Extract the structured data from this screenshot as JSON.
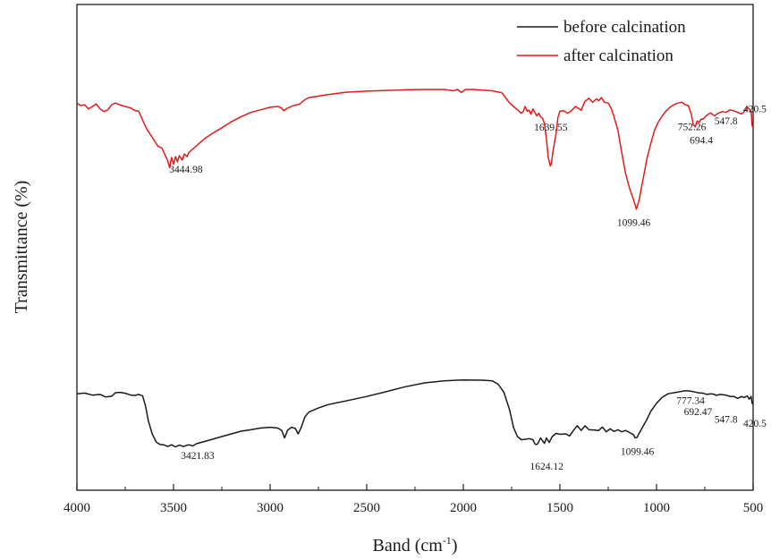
{
  "chart_data": {
    "type": "line",
    "xlabel": "Band (cm",
    "xlabel_sup": "-1",
    "xlabel_end": ")",
    "ylabel": "Transmittance (%)",
    "xlim": [
      4000,
      500
    ],
    "x_reversed": true,
    "ylim": [
      0,
      100
    ],
    "yticks_shown": false,
    "xticks": [
      4000,
      3500,
      3000,
      2500,
      2000,
      1500,
      1000,
      500
    ],
    "grid": false,
    "legend_position": "top-right",
    "series": [
      {
        "name": "before calcination",
        "color": "#1a1a1a",
        "points": [
          [
            4000,
            42
          ],
          [
            3960,
            42.5
          ],
          [
            3920,
            41
          ],
          [
            3880,
            41.5
          ],
          [
            3850,
            39.6
          ],
          [
            3820,
            40.2
          ],
          [
            3800,
            42.8
          ],
          [
            3775,
            43
          ],
          [
            3750,
            42.4
          ],
          [
            3720,
            41
          ],
          [
            3700,
            40.8
          ],
          [
            3680,
            41.5
          ],
          [
            3660,
            40.5
          ],
          [
            3645,
            33
          ],
          [
            3630,
            22
          ],
          [
            3610,
            12.5
          ],
          [
            3590,
            6.5
          ],
          [
            3570,
            4.7
          ],
          [
            3550,
            4.4
          ],
          [
            3530,
            3.2
          ],
          [
            3510,
            4.5
          ],
          [
            3490,
            2.9
          ],
          [
            3470,
            4.2
          ],
          [
            3450,
            3.2
          ],
          [
            3421,
            4.5
          ],
          [
            3400,
            3.6
          ],
          [
            3380,
            5.3
          ],
          [
            3350,
            6.5
          ],
          [
            3300,
            8.5
          ],
          [
            3250,
            10.5
          ],
          [
            3200,
            12.5
          ],
          [
            3150,
            14.5
          ],
          [
            3100,
            15.5
          ],
          [
            3050,
            16.8
          ],
          [
            3000,
            17.4
          ],
          [
            2960,
            16.8
          ],
          [
            2940,
            15
          ],
          [
            2925,
            9.5
          ],
          [
            2910,
            15
          ],
          [
            2890,
            17.4
          ],
          [
            2870,
            16.5
          ],
          [
            2855,
            12.5
          ],
          [
            2840,
            17
          ],
          [
            2820,
            25
          ],
          [
            2800,
            28.5
          ],
          [
            2750,
            31.5
          ],
          [
            2700,
            34
          ],
          [
            2600,
            37
          ],
          [
            2500,
            40
          ],
          [
            2400,
            43.5
          ],
          [
            2300,
            47.2
          ],
          [
            2200,
            50
          ],
          [
            2100,
            51.5
          ],
          [
            2000,
            52.2
          ],
          [
            1900,
            52
          ],
          [
            1850,
            51.5
          ],
          [
            1820,
            49
          ],
          [
            1790,
            43
          ],
          [
            1760,
            30
          ],
          [
            1740,
            17
          ],
          [
            1720,
            10.5
          ],
          [
            1700,
            8.2
          ],
          [
            1680,
            8.5
          ],
          [
            1660,
            9
          ],
          [
            1640,
            8.2
          ],
          [
            1630,
            5.3
          ],
          [
            1624,
            4.6
          ],
          [
            1615,
            5.2
          ],
          [
            1600,
            9.5
          ],
          [
            1580,
            5.5
          ],
          [
            1570,
            9.5
          ],
          [
            1555,
            6.2
          ],
          [
            1540,
            10.5
          ],
          [
            1520,
            12.8
          ],
          [
            1500,
            12.2
          ],
          [
            1470,
            12.5
          ],
          [
            1450,
            11
          ],
          [
            1430,
            15
          ],
          [
            1410,
            18.5
          ],
          [
            1390,
            15
          ],
          [
            1370,
            18.5
          ],
          [
            1350,
            15.5
          ],
          [
            1320,
            15.3
          ],
          [
            1300,
            15
          ],
          [
            1280,
            17.5
          ],
          [
            1260,
            14
          ],
          [
            1240,
            16.2
          ],
          [
            1220,
            14.3
          ],
          [
            1200,
            15.5
          ],
          [
            1180,
            14
          ],
          [
            1160,
            15
          ],
          [
            1140,
            13.5
          ],
          [
            1120,
            12
          ],
          [
            1110,
            9.5
          ],
          [
            1100,
            10
          ],
          [
            1090,
            13
          ],
          [
            1070,
            18
          ],
          [
            1050,
            23
          ],
          [
            1030,
            29
          ],
          [
            1000,
            35
          ],
          [
            970,
            39.5
          ],
          [
            940,
            42
          ],
          [
            900,
            43
          ],
          [
            850,
            44.2
          ],
          [
            820,
            43.8
          ],
          [
            800,
            43.2
          ],
          [
            777,
            42.5
          ],
          [
            760,
            42.5
          ],
          [
            740,
            41.5
          ],
          [
            720,
            42
          ],
          [
            700,
            41.6
          ],
          [
            692,
            40.8
          ],
          [
            670,
            41.5
          ],
          [
            640,
            41
          ],
          [
            620,
            40
          ],
          [
            600,
            40
          ],
          [
            580,
            38.6
          ],
          [
            560,
            40
          ],
          [
            547,
            39.2
          ],
          [
            530,
            40.3
          ],
          [
            520,
            38
          ],
          [
            510,
            40
          ],
          [
            505,
            35
          ],
          [
            500,
            34.5
          ]
        ]
      },
      {
        "name": "after calcination",
        "color": "#e11b1b",
        "points": [
          [
            4000,
            92
          ],
          [
            3980,
            90.5
          ],
          [
            3960,
            91
          ],
          [
            3940,
            88.5
          ],
          [
            3920,
            90
          ],
          [
            3900,
            91.5
          ],
          [
            3880,
            88.5
          ],
          [
            3860,
            87
          ],
          [
            3840,
            88
          ],
          [
            3820,
            91
          ],
          [
            3800,
            92
          ],
          [
            3780,
            91
          ],
          [
            3750,
            90
          ],
          [
            3720,
            89
          ],
          [
            3700,
            87.6
          ],
          [
            3680,
            87.2
          ],
          [
            3660,
            82
          ],
          [
            3640,
            77
          ],
          [
            3620,
            73.5
          ],
          [
            3600,
            70
          ],
          [
            3580,
            66.5
          ],
          [
            3560,
            65.5
          ],
          [
            3550,
            63
          ],
          [
            3540,
            60.5
          ],
          [
            3530,
            58
          ],
          [
            3520,
            54
          ],
          [
            3510,
            60
          ],
          [
            3500,
            56
          ],
          [
            3490,
            60.5
          ],
          [
            3480,
            57.5
          ],
          [
            3470,
            61
          ],
          [
            3455,
            58.5
          ],
          [
            3444,
            62
          ],
          [
            3430,
            60.5
          ],
          [
            3420,
            63
          ],
          [
            3400,
            65
          ],
          [
            3370,
            68
          ],
          [
            3340,
            71
          ],
          [
            3300,
            74
          ],
          [
            3250,
            77.5
          ],
          [
            3200,
            81
          ],
          [
            3150,
            84
          ],
          [
            3100,
            86.5
          ],
          [
            3050,
            88
          ],
          [
            3000,
            89.5
          ],
          [
            2960,
            90
          ],
          [
            2940,
            89
          ],
          [
            2930,
            87.5
          ],
          [
            2910,
            89
          ],
          [
            2880,
            90.5
          ],
          [
            2850,
            91.2
          ],
          [
            2820,
            94
          ],
          [
            2800,
            95.2
          ],
          [
            2700,
            97
          ],
          [
            2600,
            98.4
          ],
          [
            2500,
            99
          ],
          [
            2400,
            99.4
          ],
          [
            2300,
            99.8
          ],
          [
            2200,
            100
          ],
          [
            2100,
            100
          ],
          [
            2050,
            99.2
          ],
          [
            2030,
            100
          ],
          [
            2010,
            98.2
          ],
          [
            1990,
            100
          ],
          [
            1950,
            100
          ],
          [
            1900,
            99.6
          ],
          [
            1850,
            99.2
          ],
          [
            1800,
            98
          ],
          [
            1780,
            95
          ],
          [
            1760,
            92
          ],
          [
            1740,
            90
          ],
          [
            1720,
            88
          ],
          [
            1700,
            86
          ],
          [
            1690,
            87
          ],
          [
            1680,
            90
          ],
          [
            1670,
            87.2
          ],
          [
            1660,
            87.8
          ],
          [
            1650,
            85.5
          ],
          [
            1640,
            88.5
          ],
          [
            1620,
            84.5
          ],
          [
            1610,
            86
          ],
          [
            1600,
            84
          ],
          [
            1590,
            83
          ],
          [
            1580,
            80
          ],
          [
            1570,
            71
          ],
          [
            1560,
            60
          ],
          [
            1550,
            55
          ],
          [
            1545,
            56
          ],
          [
            1535,
            64
          ],
          [
            1520,
            74
          ],
          [
            1510,
            83.5
          ],
          [
            1500,
            87.2
          ],
          [
            1480,
            87.5
          ],
          [
            1460,
            86
          ],
          [
            1440,
            87.5
          ],
          [
            1420,
            90
          ],
          [
            1400,
            88.5
          ],
          [
            1390,
            87.8
          ],
          [
            1380,
            90.5
          ],
          [
            1370,
            93
          ],
          [
            1350,
            94.8
          ],
          [
            1330,
            92.5
          ],
          [
            1310,
            94.5
          ],
          [
            1300,
            93.3
          ],
          [
            1285,
            95.2
          ],
          [
            1270,
            92.5
          ],
          [
            1250,
            92
          ],
          [
            1235,
            89
          ],
          [
            1220,
            84
          ],
          [
            1200,
            76
          ],
          [
            1180,
            63
          ],
          [
            1160,
            50.5
          ],
          [
            1140,
            42
          ],
          [
            1120,
            35.5
          ],
          [
            1110,
            32
          ],
          [
            1104,
            29.5
          ],
          [
            1100,
            31
          ],
          [
            1090,
            35
          ],
          [
            1080,
            41
          ],
          [
            1065,
            50
          ],
          [
            1050,
            59
          ],
          [
            1030,
            68
          ],
          [
            1010,
            76
          ],
          [
            990,
            81
          ],
          [
            970,
            84.5
          ],
          [
            950,
            87.5
          ],
          [
            930,
            89.5
          ],
          [
            910,
            91
          ],
          [
            890,
            92
          ],
          [
            870,
            92.5
          ],
          [
            850,
            91
          ],
          [
            835,
            90.5
          ],
          [
            820,
            85.5
          ],
          [
            810,
            79.5
          ],
          [
            800,
            78
          ],
          [
            790,
            81.5
          ],
          [
            780,
            80.5
          ],
          [
            770,
            82.5
          ],
          [
            760,
            82.5
          ],
          [
            752,
            83.5
          ],
          [
            740,
            84.8
          ],
          [
            720,
            86.2
          ],
          [
            700,
            84.5
          ],
          [
            694,
            85
          ],
          [
            680,
            86
          ],
          [
            660,
            87
          ],
          [
            640,
            86.5
          ],
          [
            620,
            88
          ],
          [
            600,
            87.5
          ],
          [
            580,
            86.5
          ],
          [
            560,
            85.6
          ],
          [
            550,
            86.5
          ],
          [
            530,
            89.5
          ],
          [
            520,
            88.5
          ],
          [
            510,
            87
          ],
          [
            505,
            79
          ],
          [
            500,
            77
          ]
        ]
      }
    ],
    "annotations": [
      {
        "text": "3444.98",
        "x": 3444.98,
        "series": "after calcination",
        "dx": 2,
        "dy": 20,
        "anchor": "middle"
      },
      {
        "text": "1639.55",
        "x": 1639.55,
        "series": "after calcination",
        "dx": 20,
        "dy": 24,
        "anchor": "middle"
      },
      {
        "text": "1099.46",
        "x": 1099.46,
        "series": "after calcination",
        "dx": -4,
        "dy": 22,
        "anchor": "middle"
      },
      {
        "text": "752.26",
        "x": 752.26,
        "series": "after calcination",
        "dx": -14,
        "dy": 14,
        "anchor": "middle"
      },
      {
        "text": "694.4",
        "x": 694.4,
        "series": "after calcination",
        "dx": -16,
        "dy": 32,
        "anchor": "middle"
      },
      {
        "text": "547.8",
        "x": 547.8,
        "series": "after calcination",
        "dx": -20,
        "dy": 14,
        "anchor": "middle"
      },
      {
        "text": "420.5",
        "x": 560,
        "series": "after calcination",
        "dx": 2,
        "dy": -2,
        "anchor": "start"
      },
      {
        "text": "3421.83",
        "x": 3421.83,
        "series": "before calcination",
        "dx": 10,
        "dy": 16,
        "anchor": "middle"
      },
      {
        "text": "1624.12",
        "x": 1624.12,
        "series": "before calcination",
        "dx": 12,
        "dy": 28,
        "anchor": "middle"
      },
      {
        "text": "1099.46",
        "x": 1099.46,
        "series": "before calcination",
        "dx": 0,
        "dy": 20,
        "anchor": "middle"
      },
      {
        "text": "777.34",
        "x": 777.34,
        "series": "before calcination",
        "dx": -10,
        "dy": 12,
        "anchor": "middle"
      },
      {
        "text": "692.47",
        "x": 692.47,
        "series": "before calcination",
        "dx": -20,
        "dy": 22,
        "anchor": "middle"
      },
      {
        "text": "547.8",
        "x": 547.8,
        "series": "before calcination",
        "dx": -20,
        "dy": 28,
        "anchor": "middle"
      },
      {
        "text": "420.5",
        "x": 560,
        "series": "before calcination",
        "dx": 2,
        "dy": 34,
        "anchor": "start"
      }
    ]
  }
}
